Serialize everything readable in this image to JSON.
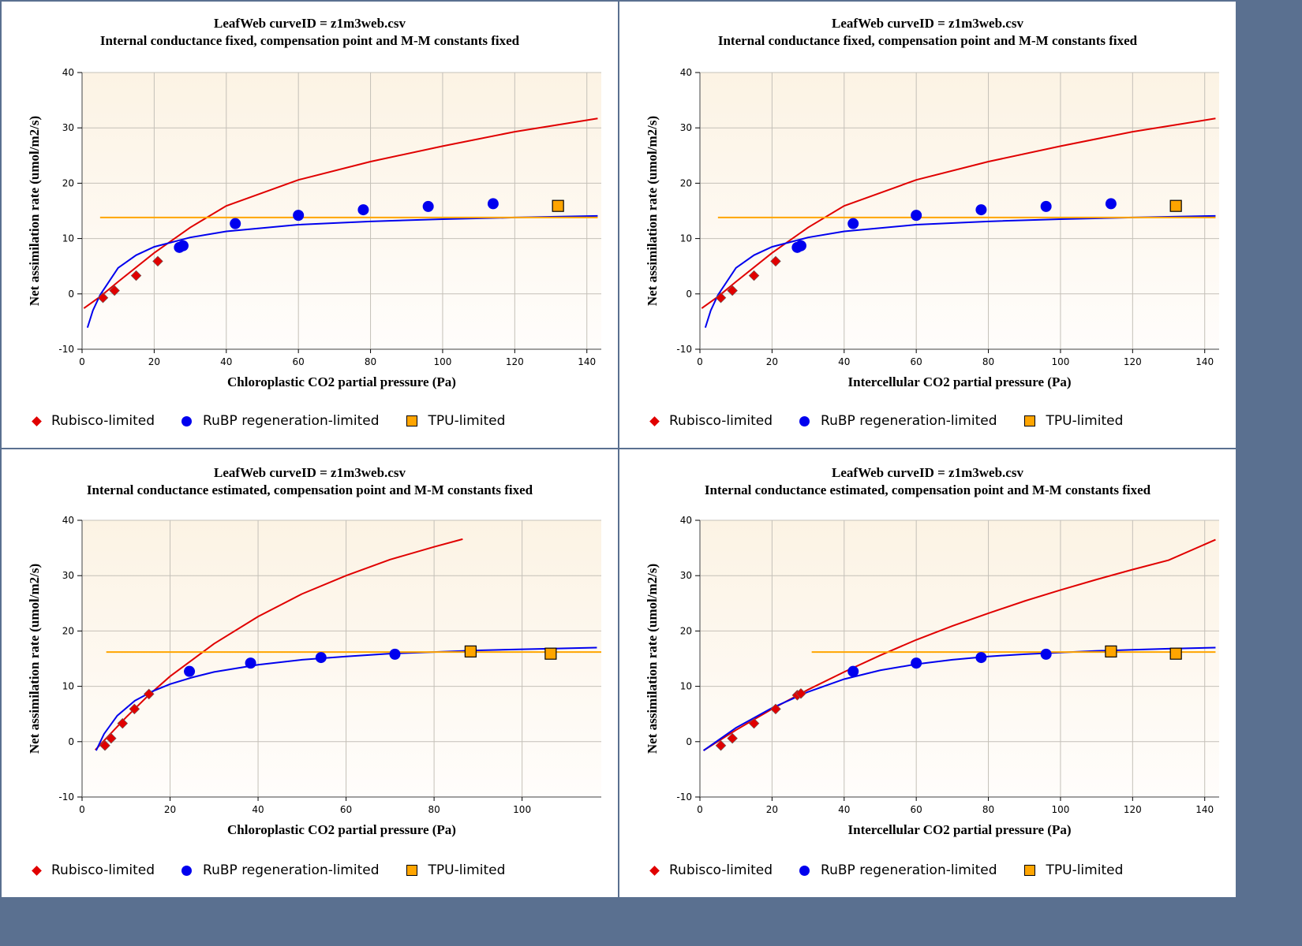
{
  "legend": {
    "rubisco": "Rubisco-limited",
    "rubp": "RuBP regeneration-limited",
    "tpu": "TPU-limited"
  },
  "colors": {
    "rubisco": "#e00000",
    "rubp": "#0000ee",
    "tpu": "#ffa500",
    "frame": "#5a7090"
  },
  "chart_data": [
    {
      "type": "scatter",
      "title": "LeafWeb curveID = z1m3web.csv",
      "subtitle": "Internal conductance fixed, compensation point and M-M constants fixed",
      "xlabel": "Chloroplastic CO2 partial pressure (Pa)",
      "ylabel": "Net assimilation rate (umol/m2/s)",
      "xlim": [
        0,
        144
      ],
      "ylim": [
        -10,
        40
      ],
      "xticks": [
        0,
        20,
        40,
        60,
        80,
        100,
        120,
        140
      ],
      "yticks": [
        -10,
        0,
        10,
        20,
        30,
        40
      ],
      "grid": true,
      "legend_position": "bottom",
      "series": [
        {
          "name": "Rubisco-limited",
          "kind": "points",
          "marker": "diamond",
          "x": [
            5.8,
            9,
            15,
            21
          ],
          "y": [
            -0.7,
            0.6,
            3.3,
            5.9
          ]
        },
        {
          "name": "RuBP regeneration-limited",
          "kind": "points",
          "marker": "circle",
          "x": [
            27,
            28,
            42.5,
            60,
            78,
            96,
            114
          ],
          "y": [
            8.4,
            8.7,
            12.7,
            14.2,
            15.2,
            15.8,
            16.3
          ]
        },
        {
          "name": "TPU-limited",
          "kind": "points",
          "marker": "square",
          "x": [
            132
          ],
          "y": [
            15.9
          ]
        },
        {
          "name": "Rubisco fit",
          "kind": "line",
          "color": "rubisco",
          "x": [
            0.5,
            5,
            10,
            20,
            30,
            40,
            60,
            80,
            100,
            120,
            143
          ],
          "y": [
            -2.6,
            -0.5,
            2.2,
            7.4,
            12.0,
            15.9,
            20.6,
            23.9,
            26.7,
            29.3,
            31.7
          ]
        },
        {
          "name": "RuBP fit",
          "kind": "line",
          "color": "rubp",
          "x": [
            1.5,
            3,
            5,
            10,
            15,
            20,
            30,
            40,
            60,
            80,
            100,
            120,
            143
          ],
          "y": [
            -6.1,
            -3.0,
            -0.2,
            4.7,
            7.0,
            8.5,
            10.2,
            11.3,
            12.5,
            13.1,
            13.5,
            13.8,
            14.1
          ]
        },
        {
          "name": "TPU fit",
          "kind": "line",
          "color": "tpu",
          "x": [
            5,
            143
          ],
          "y": [
            13.8,
            13.8
          ]
        }
      ]
    },
    {
      "type": "scatter",
      "title": "LeafWeb curveID = z1m3web.csv",
      "subtitle": "Internal conductance fixed, compensation point and M-M constants fixed",
      "xlabel": "Intercellular CO2 partial pressure (Pa)",
      "ylabel": "Net assimilation rate (umol/m2/s)",
      "xlim": [
        0,
        144
      ],
      "ylim": [
        -10,
        40
      ],
      "xticks": [
        0,
        20,
        40,
        60,
        80,
        100,
        120,
        140
      ],
      "yticks": [
        -10,
        0,
        10,
        20,
        30,
        40
      ],
      "grid": true,
      "legend_position": "bottom",
      "series": [
        {
          "name": "Rubisco-limited",
          "kind": "points",
          "marker": "diamond",
          "x": [
            5.8,
            9,
            15,
            21
          ],
          "y": [
            -0.7,
            0.6,
            3.3,
            5.9
          ]
        },
        {
          "name": "RuBP regeneration-limited",
          "kind": "points",
          "marker": "circle",
          "x": [
            27,
            28,
            42.5,
            60,
            78,
            96,
            114
          ],
          "y": [
            8.4,
            8.7,
            12.7,
            14.2,
            15.2,
            15.8,
            16.3
          ]
        },
        {
          "name": "TPU-limited",
          "kind": "points",
          "marker": "square",
          "x": [
            132
          ],
          "y": [
            15.9
          ]
        },
        {
          "name": "Rubisco fit",
          "kind": "line",
          "color": "rubisco",
          "x": [
            0.5,
            5,
            10,
            20,
            30,
            40,
            60,
            80,
            100,
            120,
            143
          ],
          "y": [
            -2.6,
            -0.5,
            2.2,
            7.4,
            12.0,
            15.9,
            20.6,
            23.9,
            26.7,
            29.3,
            31.7
          ]
        },
        {
          "name": "RuBP fit",
          "kind": "line",
          "color": "rubp",
          "x": [
            1.5,
            3,
            5,
            10,
            15,
            20,
            30,
            40,
            60,
            80,
            100,
            120,
            143
          ],
          "y": [
            -6.1,
            -3.0,
            -0.2,
            4.7,
            7.0,
            8.5,
            10.2,
            11.3,
            12.5,
            13.1,
            13.5,
            13.8,
            14.1
          ]
        },
        {
          "name": "TPU fit",
          "kind": "line",
          "color": "tpu",
          "x": [
            5,
            143
          ],
          "y": [
            13.8,
            13.8
          ]
        }
      ]
    },
    {
      "type": "scatter",
      "title": "LeafWeb curveID = z1m3web.csv",
      "subtitle": "Internal conductance estimated, compensation point and M-M constants fixed",
      "xlabel": "Chloroplastic CO2 partial pressure (Pa)",
      "ylabel": "Net assimilation rate (umol/m2/s)",
      "xlim": [
        0,
        118
      ],
      "ylim": [
        -10,
        40
      ],
      "xticks": [
        0,
        20,
        40,
        60,
        80,
        100
      ],
      "yticks": [
        -10,
        0,
        10,
        20,
        30,
        40
      ],
      "grid": true,
      "legend_position": "bottom",
      "series": [
        {
          "name": "Rubisco-limited",
          "kind": "points",
          "marker": "diamond",
          "x": [
            5.2,
            6.6,
            9.2,
            11.9,
            15.2
          ],
          "y": [
            -0.7,
            0.6,
            3.3,
            5.9,
            8.6
          ]
        },
        {
          "name": "RuBP regeneration-limited",
          "kind": "points",
          "marker": "circle",
          "x": [
            24.4,
            38.3,
            54.3,
            71.1
          ],
          "y": [
            12.7,
            14.2,
            15.2,
            15.8
          ]
        },
        {
          "name": "TPU-limited",
          "kind": "points",
          "marker": "square",
          "x": [
            88.3,
            106.5
          ],
          "y": [
            16.3,
            15.9
          ]
        },
        {
          "name": "Rubisco fit",
          "kind": "line",
          "color": "rubisco",
          "x": [
            3,
            5,
            10,
            15,
            20,
            30,
            40,
            50,
            60,
            70,
            80,
            86.5
          ],
          "y": [
            -1.5,
            0.2,
            4.4,
            8.3,
            11.8,
            17.7,
            22.6,
            26.7,
            30.0,
            32.9,
            35.2,
            36.6
          ]
        },
        {
          "name": "RuBP fit",
          "kind": "line",
          "color": "rubp",
          "x": [
            3.2,
            5,
            8,
            12,
            16,
            20,
            25,
            30,
            40,
            50,
            60,
            70,
            80,
            90,
            100,
            117
          ],
          "y": [
            -1.6,
            1.4,
            4.7,
            7.4,
            9.1,
            10.4,
            11.6,
            12.6,
            13.9,
            14.8,
            15.4,
            15.9,
            16.2,
            16.5,
            16.7,
            17.0
          ]
        },
        {
          "name": "TPU fit",
          "kind": "line",
          "color": "tpu",
          "x": [
            5.5,
            118
          ],
          "y": [
            16.2,
            16.2
          ]
        }
      ]
    },
    {
      "type": "scatter",
      "title": "LeafWeb curveID = z1m3web.csv",
      "subtitle": "Internal conductance estimated, compensation point and M-M constants fixed",
      "xlabel": "Intercellular CO2 partial pressure (Pa)",
      "ylabel": "Net assimilation rate (umol/m2/s)",
      "xlim": [
        0,
        144
      ],
      "ylim": [
        -10,
        40
      ],
      "xticks": [
        0,
        20,
        40,
        60,
        80,
        100,
        120,
        140
      ],
      "yticks": [
        -10,
        0,
        10,
        20,
        30,
        40
      ],
      "grid": true,
      "legend_position": "bottom",
      "series": [
        {
          "name": "Rubisco-limited",
          "kind": "points",
          "marker": "diamond",
          "x": [
            5.8,
            9,
            15,
            21,
            27,
            28
          ],
          "y": [
            -0.7,
            0.6,
            3.3,
            5.9,
            8.4,
            8.7
          ]
        },
        {
          "name": "RuBP regeneration-limited",
          "kind": "points",
          "marker": "circle",
          "x": [
            42.5,
            60,
            78,
            96
          ],
          "y": [
            12.7,
            14.2,
            15.2,
            15.8
          ]
        },
        {
          "name": "TPU-limited",
          "kind": "points",
          "marker": "square",
          "x": [
            114,
            132
          ],
          "y": [
            16.3,
            15.9
          ]
        },
        {
          "name": "Rubisco fit",
          "kind": "line",
          "color": "rubisco",
          "x": [
            1,
            10,
            20,
            30,
            40,
            50,
            60,
            70,
            80,
            90,
            100,
            110,
            120,
            130,
            143
          ],
          "y": [
            -1.6,
            2.1,
            5.9,
            9.4,
            12.6,
            15.6,
            18.4,
            20.9,
            23.2,
            25.4,
            27.4,
            29.3,
            31.1,
            32.8,
            36.5
          ]
        },
        {
          "name": "RuBP fit",
          "kind": "line",
          "color": "rubp",
          "x": [
            1,
            10,
            20,
            30,
            40,
            50,
            60,
            70,
            80,
            90,
            100,
            110,
            120,
            130,
            143
          ],
          "y": [
            -1.6,
            2.5,
            6.1,
            9.0,
            11.3,
            12.9,
            14.0,
            14.8,
            15.4,
            15.8,
            16.1,
            16.4,
            16.6,
            16.8,
            17.0
          ]
        },
        {
          "name": "TPU fit",
          "kind": "line",
          "color": "tpu",
          "x": [
            31,
            143
          ],
          "y": [
            16.2,
            16.2
          ]
        }
      ]
    }
  ]
}
